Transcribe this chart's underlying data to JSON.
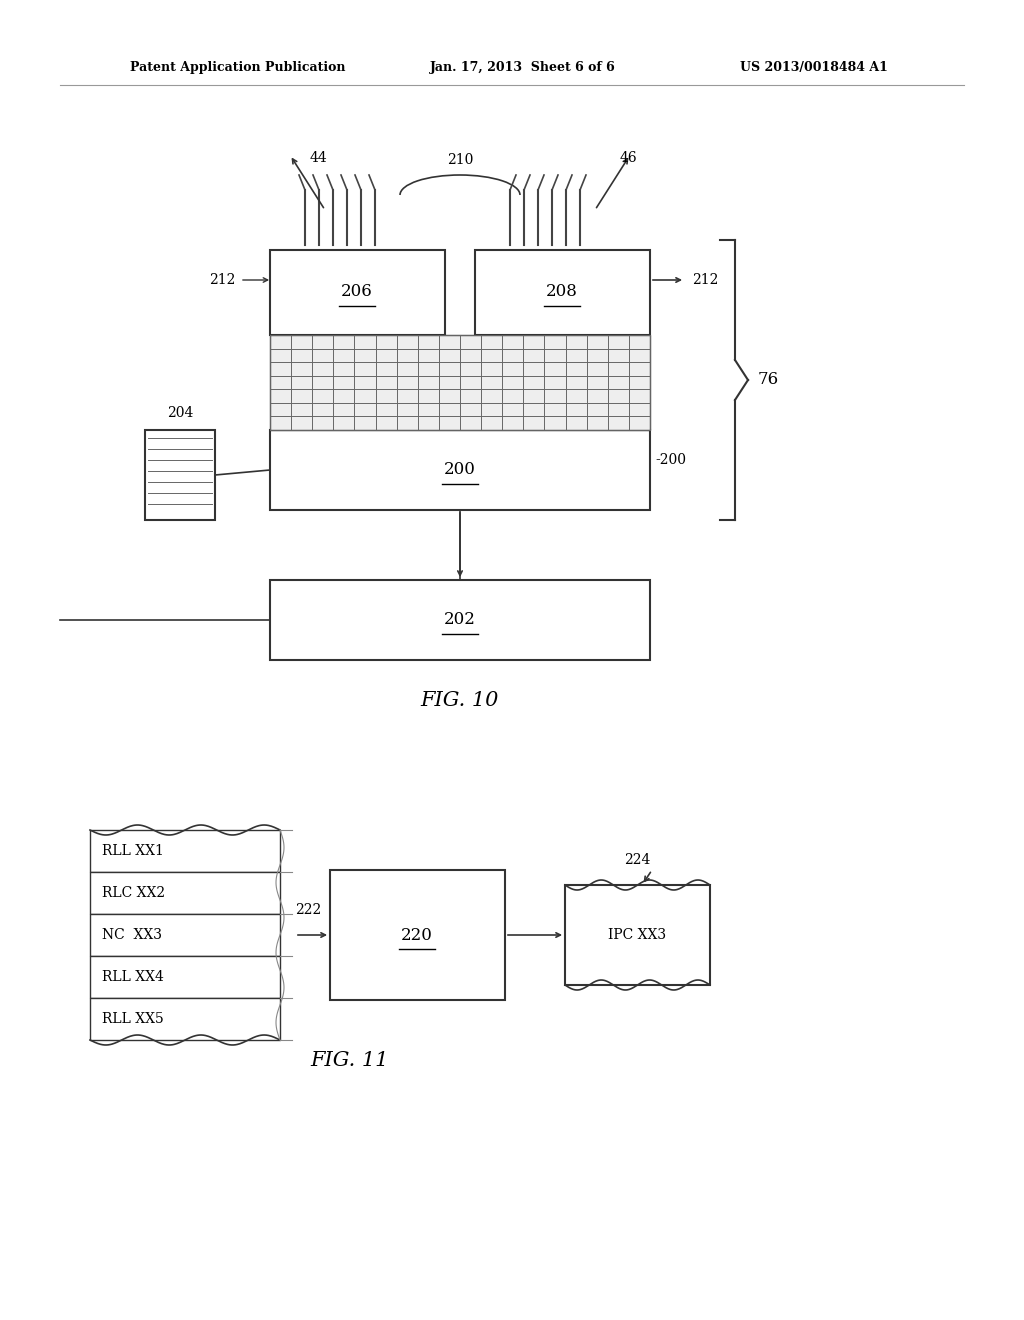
{
  "bg_color": "#ffffff",
  "text_color": "#000000",
  "header_left": "Patent Application Publication",
  "header_mid": "Jan. 17, 2013  Sheet 6 of 6",
  "header_right": "US 2013/0018484 A1",
  "fig10_label": "FIG. 10",
  "fig11_label": "FIG. 11",
  "label206": "206",
  "label208": "208",
  "label200": "200",
  "label202": "202",
  "label204": "204",
  "label210": "210",
  "label44": "44",
  "label46": "46",
  "label212": "212",
  "label76": "76",
  "label200_arrow": "200",
  "label220": "220",
  "label222": "222",
  "label224": "224",
  "ipc_label": "IPC XX3",
  "stack_rows": [
    "RLL XX1",
    "RLC XX2",
    "NC  XX3",
    "RLL XX4",
    "RLL XX5"
  ]
}
